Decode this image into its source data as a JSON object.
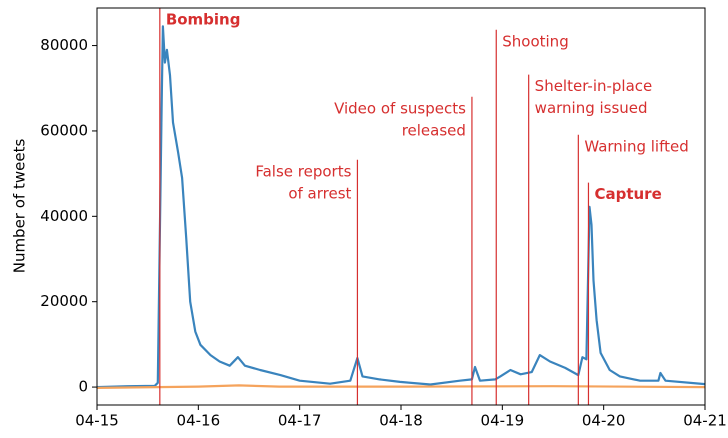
{
  "chart_data": {
    "type": "line",
    "ylabel": "Number of tweets",
    "xlim": [
      0,
      6
    ],
    "xticks": [
      {
        "value": 0,
        "label": "04-15"
      },
      {
        "value": 1,
        "label": "04-16"
      },
      {
        "value": 2,
        "label": "04-17"
      },
      {
        "value": 3,
        "label": "04-18"
      },
      {
        "value": 4,
        "label": "04-19"
      },
      {
        "value": 5,
        "label": "04-20"
      },
      {
        "value": 6,
        "label": "04-21"
      }
    ],
    "ylim": [
      -4200,
      88800
    ],
    "yticks": [
      0,
      20000,
      40000,
      60000,
      80000
    ],
    "series": [
      {
        "color": "#3a84bd",
        "x": [
          0,
          0.3,
          0.57,
          0.6,
          0.62,
          0.64,
          0.65,
          0.67,
          0.69,
          0.72,
          0.75,
          0.8,
          0.84,
          0.88,
          0.92,
          0.97,
          1.02,
          1.12,
          1.21,
          1.31,
          1.39,
          1.46,
          1.61,
          1.81,
          2.0,
          2.3,
          2.5,
          2.57,
          2.62,
          2.79,
          2.99,
          3.29,
          3.58,
          3.7,
          3.73,
          3.78,
          3.93,
          3.98,
          4.08,
          4.18,
          4.29,
          4.37,
          4.47,
          4.62,
          4.75,
          4.79,
          4.83,
          4.86,
          4.88,
          4.9,
          4.93,
          4.97,
          5.06,
          5.16,
          5.36,
          5.54,
          5.56,
          5.61,
          6.0
        ],
        "values": [
          0,
          200,
          300,
          1000,
          35000,
          70000,
          84500,
          76000,
          79000,
          73000,
          62000,
          55000,
          49000,
          35000,
          20000,
          13000,
          9900,
          7500,
          6000,
          5000,
          7000,
          5000,
          4000,
          2800,
          1500,
          800,
          1500,
          6800,
          2500,
          1800,
          1200,
          600,
          1500,
          1800,
          4700,
          1500,
          1800,
          2500,
          4000,
          3000,
          3500,
          7500,
          6000,
          4500,
          2800,
          7000,
          6500,
          42200,
          38000,
          25000,
          15700,
          8000,
          4000,
          2500,
          1500,
          1500,
          3300,
          1500,
          700
        ]
      },
      {
        "color": "#f5a35c",
        "x": [
          0,
          1.0,
          1.4,
          1.8,
          3.0,
          4.5,
          6.0
        ],
        "values": [
          -200,
          100,
          400,
          100,
          100,
          200,
          0
        ]
      }
    ],
    "annotations": [
      {
        "text": [
          "Bombing"
        ],
        "x": 0.62,
        "top": 88800,
        "side": "right",
        "bold": true
      },
      {
        "text": [
          "False reports",
          "of arrest"
        ],
        "x": 2.57,
        "top": 53250,
        "side": "left",
        "bold": false
      },
      {
        "text": [
          "Video of suspects",
          "released"
        ],
        "x": 3.7,
        "top": 68000,
        "side": "left",
        "bold": false
      },
      {
        "text": [
          "Shooting"
        ],
        "x": 3.94,
        "top": 83700,
        "side": "right",
        "bold": false
      },
      {
        "text": [
          "Shelter-in-place",
          "warning issued"
        ],
        "x": 4.26,
        "top": 73200,
        "side": "right",
        "bold": false
      },
      {
        "text": [
          "Warning lifted"
        ],
        "x": 4.75,
        "top": 59100,
        "side": "right",
        "bold": false
      },
      {
        "text": [
          "Capture"
        ],
        "x": 4.85,
        "top": 47900,
        "side": "right",
        "bold": true
      }
    ],
    "annotation_color": "#d62f2f"
  }
}
